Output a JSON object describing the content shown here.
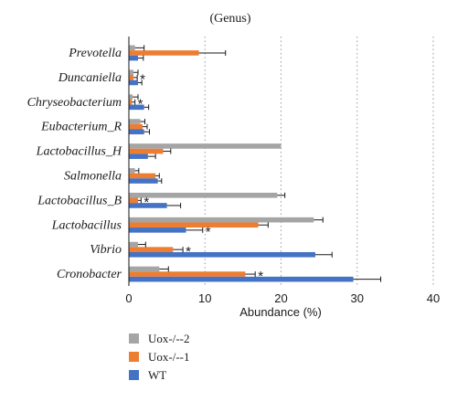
{
  "chart_data": {
    "type": "bar",
    "orientation": "horizontal",
    "title": "(Genus)",
    "xlabel": "Abundance (%)",
    "ylabel": "",
    "xlim": [
      0,
      40
    ],
    "xticks": [
      0,
      10,
      20,
      30,
      40
    ],
    "grid": "vertical-dotted",
    "legend_position": "bottom-left",
    "categories": [
      "Prevotella",
      "Duncaniella",
      "Chryseobacterium",
      "Eubacterium_R",
      "Lactobacillus_H",
      "Salmonella",
      "Lactobacillus_B",
      "Lactobacillus",
      "Vibrio",
      "Cronobacter"
    ],
    "series": [
      {
        "name": "Uox-/--2",
        "color": "#a5a5a5",
        "values": [
          0.8,
          0.6,
          0.5,
          1.5,
          20.0,
          0.8,
          19.5,
          24.3,
          1.2,
          4.0
        ],
        "errors": [
          1.2,
          0.6,
          0.7,
          0.6,
          0.0,
          0.5,
          1.0,
          1.2,
          1.0,
          1.2
        ]
      },
      {
        "name": "Uox-/--1",
        "color": "#ed7d31",
        "values": [
          9.2,
          0.6,
          0.4,
          1.8,
          4.5,
          3.5,
          1.2,
          17.0,
          5.8,
          15.3
        ],
        "errors": [
          3.5,
          0.5,
          0.4,
          0.6,
          1.0,
          0.5,
          0.4,
          1.3,
          1.3,
          1.3
        ]
      },
      {
        "name": "WT",
        "color": "#4472c4",
        "values": [
          1.2,
          1.2,
          2.0,
          2.0,
          2.5,
          3.8,
          5.0,
          7.5,
          24.5,
          29.5
        ],
        "errors": [
          0.7,
          0.5,
          0.6,
          0.7,
          1.0,
          0.5,
          1.8,
          2.2,
          2.2,
          3.6
        ]
      }
    ],
    "annotations": [
      {
        "category": "Duncaniella",
        "series": "Uox-/--1",
        "text": "*"
      },
      {
        "category": "Chryseobacterium",
        "series": "Uox-/--1",
        "text": "*"
      },
      {
        "category": "Lactobacillus_B",
        "series": "Uox-/--1",
        "text": "*"
      },
      {
        "category": "Lactobacillus",
        "series": "WT",
        "text": "*"
      },
      {
        "category": "Vibrio",
        "series": "Uox-/--1",
        "text": "*"
      },
      {
        "category": "Cronobacter",
        "series": "Uox-/--1",
        "text": "*"
      }
    ]
  }
}
